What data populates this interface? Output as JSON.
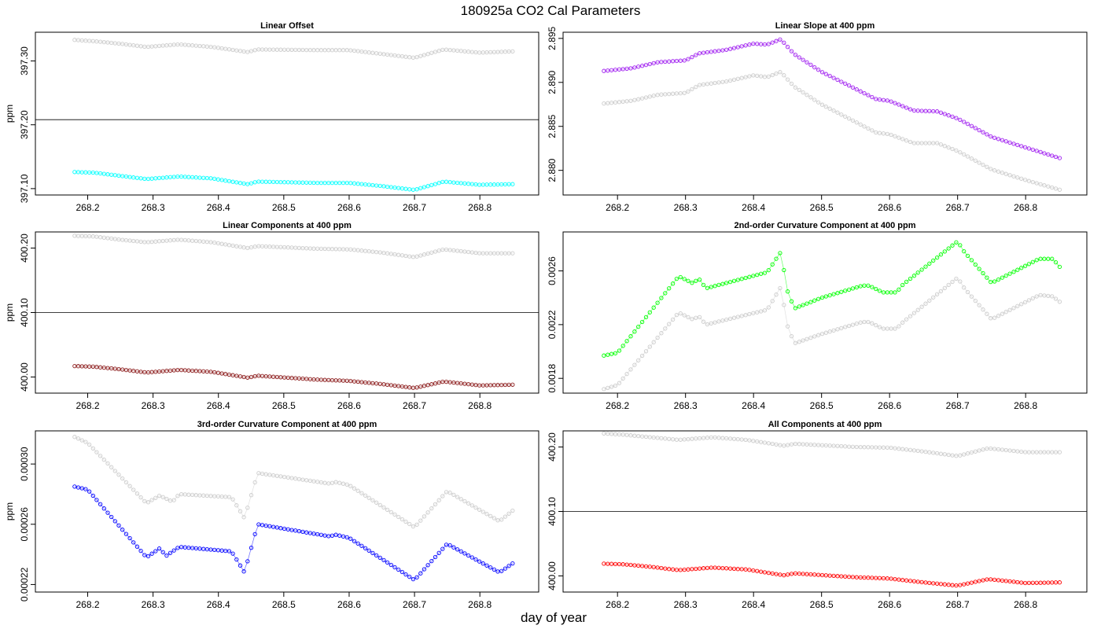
{
  "figure": {
    "title": "180925a   CO2 Cal Parameters",
    "xlabel": "day of year"
  },
  "chart_data": [
    {
      "type": "scatter",
      "title": "Linear Offset",
      "ylabel": "ppm",
      "xlim": [
        268.12,
        268.89
      ],
      "ylim": [
        397.09,
        397.345
      ],
      "x_ticks": [
        "268.2",
        "268.3",
        "268.4",
        "268.5",
        "268.6",
        "268.7",
        "268.8"
      ],
      "y_ticks": [
        "397.10",
        "397.20",
        "397.30"
      ],
      "y_tick_values": [
        397.1,
        397.2,
        397.3
      ],
      "grid": false,
      "hline": 397.208,
      "x_range": [
        268.18,
        268.85
      ],
      "series": [
        {
          "color": "#cccccc",
          "points": [
            [
              268.18,
              397.333
            ],
            [
              268.21,
              397.331
            ],
            [
              268.25,
              397.327
            ],
            [
              268.29,
              397.322
            ],
            [
              268.34,
              397.326
            ],
            [
              268.39,
              397.322
            ],
            [
              268.445,
              397.314
            ],
            [
              268.46,
              397.318
            ],
            [
              268.55,
              397.317
            ],
            [
              268.6,
              397.317
            ],
            [
              268.65,
              397.311
            ],
            [
              268.7,
              397.305
            ],
            [
              268.745,
              397.318
            ],
            [
              268.8,
              397.313
            ],
            [
              268.85,
              397.315
            ]
          ]
        },
        {
          "color": "#00ffff",
          "points": [
            [
              268.18,
              397.126
            ],
            [
              268.21,
              397.125
            ],
            [
              268.25,
              397.12
            ],
            [
              268.29,
              397.115
            ],
            [
              268.34,
              397.119
            ],
            [
              268.39,
              397.116
            ],
            [
              268.445,
              397.107
            ],
            [
              268.46,
              397.111
            ],
            [
              268.55,
              397.109
            ],
            [
              268.6,
              397.109
            ],
            [
              268.65,
              397.104
            ],
            [
              268.7,
              397.098
            ],
            [
              268.745,
              397.111
            ],
            [
              268.8,
              397.106
            ],
            [
              268.85,
              397.107
            ]
          ]
        }
      ]
    },
    {
      "type": "scatter",
      "title": "Linear Slope at 400 ppm",
      "ylabel": "",
      "xlim": [
        268.12,
        268.89
      ],
      "ylim": [
        2.8772,
        2.8957
      ],
      "x_ticks": [
        "268.2",
        "268.3",
        "268.4",
        "268.5",
        "268.6",
        "268.7",
        "268.8"
      ],
      "y_ticks": [
        "2.880",
        "2.885",
        "2.890",
        "2.895"
      ],
      "y_tick_values": [
        2.88,
        2.885,
        2.89,
        2.895
      ],
      "grid": false,
      "x_range": [
        268.18,
        268.85
      ],
      "series": [
        {
          "color": "#a020f0",
          "points": [
            [
              268.18,
              2.8913
            ],
            [
              268.22,
              2.8916
            ],
            [
              268.26,
              2.8923
            ],
            [
              268.3,
              2.8925
            ],
            [
              268.32,
              2.8933
            ],
            [
              268.36,
              2.8937
            ],
            [
              268.4,
              2.8944
            ],
            [
              268.42,
              2.8943
            ],
            [
              268.44,
              2.8949
            ],
            [
              268.46,
              2.8932
            ],
            [
              268.5,
              2.8912
            ],
            [
              268.58,
              2.8881
            ],
            [
              268.6,
              2.8879
            ],
            [
              268.635,
              2.8868
            ],
            [
              268.67,
              2.8867
            ],
            [
              268.7,
              2.8859
            ],
            [
              268.75,
              2.8838
            ],
            [
              268.8,
              2.8826
            ],
            [
              268.85,
              2.8814
            ]
          ]
        },
        {
          "color": "#cccccc",
          "points": [
            [
              268.18,
              2.8876
            ],
            [
              268.22,
              2.8879
            ],
            [
              268.26,
              2.8886
            ],
            [
              268.3,
              2.8888
            ],
            [
              268.32,
              2.8897
            ],
            [
              268.36,
              2.8901
            ],
            [
              268.4,
              2.8908
            ],
            [
              268.42,
              2.8906
            ],
            [
              268.44,
              2.8912
            ],
            [
              268.46,
              2.8895
            ],
            [
              268.5,
              2.8875
            ],
            [
              268.58,
              2.8843
            ],
            [
              268.6,
              2.8841
            ],
            [
              268.635,
              2.8831
            ],
            [
              268.67,
              2.8831
            ],
            [
              268.7,
              2.8822
            ],
            [
              268.75,
              2.8801
            ],
            [
              268.8,
              2.8789
            ],
            [
              268.85,
              2.8778
            ]
          ]
        }
      ]
    },
    {
      "type": "scatter",
      "title": "Linear Components at 400 ppm",
      "ylabel": "ppm",
      "xlim": [
        268.12,
        268.89
      ],
      "ylim": [
        399.975,
        400.225
      ],
      "x_ticks": [
        "268.2",
        "268.3",
        "268.4",
        "268.5",
        "268.6",
        "268.7",
        "268.8"
      ],
      "y_ticks": [
        "400.00",
        "400.10",
        "400.20"
      ],
      "y_tick_values": [
        400.0,
        400.1,
        400.2
      ],
      "grid": false,
      "hline": 400.1,
      "x_range": [
        268.18,
        268.85
      ],
      "series": [
        {
          "color": "#cccccc",
          "points": [
            [
              268.18,
              400.219
            ],
            [
              268.21,
              400.218
            ],
            [
              268.25,
              400.213
            ],
            [
              268.29,
              400.209
            ],
            [
              268.34,
              400.213
            ],
            [
              268.39,
              400.209
            ],
            [
              268.445,
              400.2
            ],
            [
              268.46,
              400.203
            ],
            [
              268.55,
              400.199
            ],
            [
              268.6,
              400.198
            ],
            [
              268.65,
              400.193
            ],
            [
              268.7,
              400.186
            ],
            [
              268.745,
              400.198
            ],
            [
              268.8,
              400.192
            ],
            [
              268.85,
              400.192
            ]
          ]
        },
        {
          "color": "#8b1a1a",
          "points": [
            [
              268.18,
              400.017
            ],
            [
              268.21,
              400.016
            ],
            [
              268.25,
              400.012
            ],
            [
              268.29,
              400.007
            ],
            [
              268.34,
              400.011
            ],
            [
              268.39,
              400.008
            ],
            [
              268.445,
              399.999
            ],
            [
              268.46,
              400.002
            ],
            [
              268.55,
              399.996
            ],
            [
              268.6,
              399.994
            ],
            [
              268.65,
              399.989
            ],
            [
              268.7,
              399.983
            ],
            [
              268.745,
              399.993
            ],
            [
              268.8,
              399.987
            ],
            [
              268.85,
              399.988
            ]
          ]
        }
      ]
    },
    {
      "type": "scatter",
      "title": "2nd-order Curvature Component at 400 ppm",
      "ylabel": "",
      "xlim": [
        268.12,
        268.89
      ],
      "ylim": [
        0.00169,
        0.00289
      ],
      "x_ticks": [
        "268.2",
        "268.3",
        "268.4",
        "268.5",
        "268.6",
        "268.7",
        "268.8"
      ],
      "y_ticks": [
        "0.0018",
        "0.0022",
        "0.0026"
      ],
      "y_tick_values": [
        0.0018,
        0.0022,
        0.0026
      ],
      "grid": false,
      "x_range": [
        268.18,
        268.85
      ],
      "series": [
        {
          "color": "#00ff00",
          "points": [
            [
              268.18,
              0.00197
            ],
            [
              268.2,
              0.00199
            ],
            [
              268.29,
              0.00256
            ],
            [
              268.31,
              0.00251
            ],
            [
              268.32,
              0.00254
            ],
            [
              268.33,
              0.00247
            ],
            [
              268.42,
              0.00259
            ],
            [
              268.44,
              0.00274
            ],
            [
              268.45,
              0.00245
            ],
            [
              268.46,
              0.00232
            ],
            [
              268.5,
              0.0024
            ],
            [
              268.56,
              0.00249
            ],
            [
              268.57,
              0.00249
            ],
            [
              268.59,
              0.00244
            ],
            [
              268.61,
              0.00244
            ],
            [
              268.62,
              0.0025
            ],
            [
              268.7,
              0.00282
            ],
            [
              268.71,
              0.00274
            ],
            [
              268.75,
              0.00251
            ],
            [
              268.82,
              0.00269
            ],
            [
              268.84,
              0.00269
            ],
            [
              268.85,
              0.00263
            ]
          ]
        },
        {
          "color": "#cccccc",
          "points": [
            [
              268.18,
              0.00172
            ],
            [
              268.2,
              0.00175
            ],
            [
              268.29,
              0.00229
            ],
            [
              268.31,
              0.00224
            ],
            [
              268.32,
              0.00226
            ],
            [
              268.33,
              0.0022
            ],
            [
              268.42,
              0.00231
            ],
            [
              268.44,
              0.00248
            ],
            [
              268.45,
              0.00219
            ],
            [
              268.46,
              0.00206
            ],
            [
              268.5,
              0.00213
            ],
            [
              268.56,
              0.00222
            ],
            [
              268.57,
              0.00222
            ],
            [
              268.59,
              0.00217
            ],
            [
              268.61,
              0.00217
            ],
            [
              268.62,
              0.00222
            ],
            [
              268.7,
              0.00255
            ],
            [
              268.71,
              0.00247
            ],
            [
              268.75,
              0.00224
            ],
            [
              268.82,
              0.00242
            ],
            [
              268.84,
              0.00241
            ],
            [
              268.85,
              0.00237
            ]
          ]
        }
      ]
    },
    {
      "type": "scatter",
      "title": "3rd-order Curvature Component at 400 ppm",
      "ylabel": "ppm",
      "xlim": [
        268.12,
        268.89
      ],
      "ylim": [
        0.000215,
        0.000322
      ],
      "x_ticks": [
        "268.2",
        "268.3",
        "268.4",
        "268.5",
        "268.6",
        "268.7",
        "268.8"
      ],
      "y_ticks": [
        "0.00022",
        "0.00026",
        "0.00030"
      ],
      "y_tick_values": [
        0.00022,
        0.00026,
        0.0003
      ],
      "grid": false,
      "x_range": [
        268.18,
        268.85
      ],
      "series": [
        {
          "color": "#cccccc",
          "points": [
            [
              268.18,
              0.000318
            ],
            [
              268.2,
              0.000314
            ],
            [
              268.29,
              0.000274
            ],
            [
              268.31,
              0.000279
            ],
            [
              268.33,
              0.000275
            ],
            [
              268.34,
              0.00028
            ],
            [
              268.42,
              0.000278
            ],
            [
              268.44,
              0.000264
            ],
            [
              268.46,
              0.000294
            ],
            [
              268.57,
              0.000287
            ],
            [
              268.58,
              0.000288
            ],
            [
              268.6,
              0.000286
            ],
            [
              268.7,
              0.000258
            ],
            [
              268.75,
              0.000282
            ],
            [
              268.83,
              0.000262
            ],
            [
              268.85,
              0.000269
            ]
          ]
        },
        {
          "color": "#0000ff",
          "points": [
            [
              268.18,
              0.000285
            ],
            [
              268.2,
              0.000283
            ],
            [
              268.29,
              0.000238
            ],
            [
              268.31,
              0.000244
            ],
            [
              268.32,
              0.000239
            ],
            [
              268.34,
              0.000245
            ],
            [
              268.42,
              0.000242
            ],
            [
              268.44,
              0.000228
            ],
            [
              268.46,
              0.00026
            ],
            [
              268.57,
              0.000252
            ],
            [
              268.58,
              0.000253
            ],
            [
              268.6,
              0.000251
            ],
            [
              268.7,
              0.000223
            ],
            [
              268.75,
              0.000247
            ],
            [
              268.83,
              0.000228
            ],
            [
              268.85,
              0.000234
            ]
          ]
        }
      ]
    },
    {
      "type": "scatter",
      "title": "All Components at 400 ppm",
      "ylabel": "",
      "xlim": [
        268.12,
        268.89
      ],
      "ylim": [
        399.975,
        400.225
      ],
      "x_ticks": [
        "268.2",
        "268.3",
        "268.4",
        "268.5",
        "268.6",
        "268.7",
        "268.8"
      ],
      "y_ticks": [
        "400.00",
        "400.10",
        "400.20"
      ],
      "y_tick_values": [
        400.0,
        400.1,
        400.2
      ],
      "grid": false,
      "hline": 400.1,
      "x_range": [
        268.18,
        268.85
      ],
      "series": [
        {
          "color": "#cccccc",
          "points": [
            [
              268.18,
              400.221
            ],
            [
              268.21,
              400.219
            ],
            [
              268.25,
              400.215
            ],
            [
              268.29,
              400.211
            ],
            [
              268.34,
              400.215
            ],
            [
              268.39,
              400.211
            ],
            [
              268.445,
              400.202
            ],
            [
              268.46,
              400.205
            ],
            [
              268.55,
              400.2
            ],
            [
              268.6,
              400.199
            ],
            [
              268.65,
              400.193
            ],
            [
              268.7,
              400.186
            ],
            [
              268.745,
              400.198
            ],
            [
              268.8,
              400.192
            ],
            [
              268.85,
              400.192
            ]
          ]
        },
        {
          "color": "#ff0000",
          "points": [
            [
              268.18,
              400.019
            ],
            [
              268.21,
              400.018
            ],
            [
              268.25,
              400.014
            ],
            [
              268.29,
              400.009
            ],
            [
              268.34,
              400.013
            ],
            [
              268.39,
              400.01
            ],
            [
              268.445,
              400.001
            ],
            [
              268.46,
              400.004
            ],
            [
              268.55,
              399.998
            ],
            [
              268.6,
              399.996
            ],
            [
              268.65,
              399.99
            ],
            [
              268.7,
              399.985
            ],
            [
              268.745,
              399.995
            ],
            [
              268.8,
              399.989
            ],
            [
              268.85,
              399.99
            ]
          ]
        }
      ]
    }
  ]
}
